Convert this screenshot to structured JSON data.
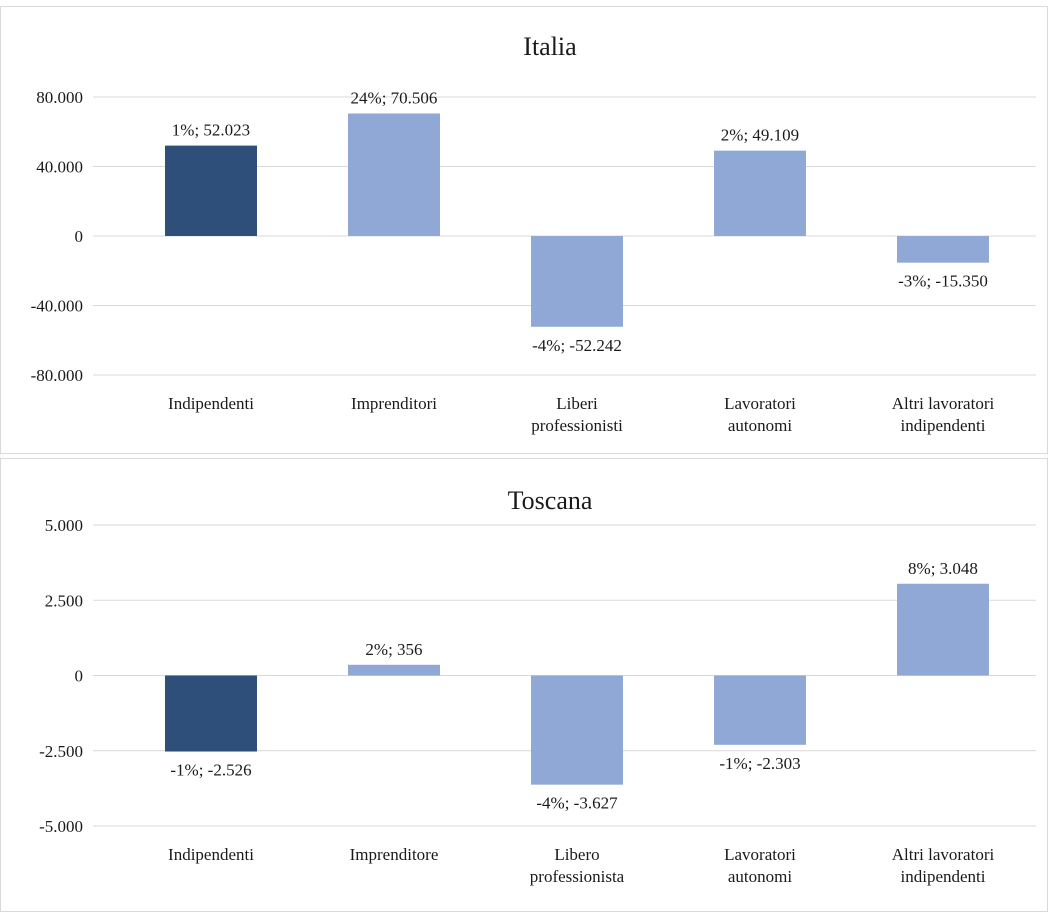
{
  "colors": {
    "highlight": "#2e4f7a",
    "bar": "#8fa8d6",
    "grid": "#d9d9d9"
  },
  "chart_data": [
    {
      "type": "bar",
      "title": "Italia",
      "categories": [
        "Indipendenti",
        "Imprenditori",
        "Liberi professionisti",
        "Lavoratori autonomi",
        "Altri lavoratori indipendenti"
      ],
      "values": [
        52023,
        70506,
        -52242,
        49109,
        -15350
      ],
      "data_labels": [
        "1%; 52.023",
        "24%; 70.506",
        "-4%; -52.242",
        "2%; 49.109",
        "-3%; -15.350"
      ],
      "yticks": [
        "80.000",
        "40.000",
        "0",
        "-40.000",
        "-80.000"
      ],
      "ylim": [
        -80000,
        80000
      ],
      "grid": true
    },
    {
      "type": "bar",
      "title": "Toscana",
      "categories": [
        "Indipendenti",
        "Imprenditore",
        "Libero professionista",
        "Lavoratori autonomi",
        "Altri lavoratori indipendenti"
      ],
      "values": [
        -2526,
        356,
        -3627,
        -2303,
        3048
      ],
      "data_labels": [
        "-1%; -2.526",
        "2%; 356",
        "-4%; -3.627",
        "-1%; -2.303",
        "8%; 3.048"
      ],
      "yticks": [
        "5.000",
        "2.500",
        "0",
        "-2.500",
        "-5.000"
      ],
      "ylim": [
        -5000,
        5000
      ],
      "grid": true
    }
  ]
}
